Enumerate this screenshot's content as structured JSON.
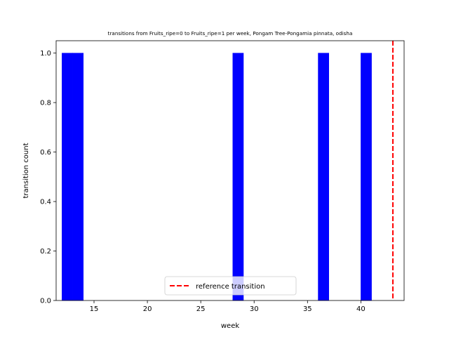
{
  "chart_data": {
    "type": "bar",
    "title": "transitions from Fruits_ripe=0 to Fruits_ripe=1 per week, Pongam Tree-Pongamia pinnata, odisha",
    "xlabel": "week",
    "ylabel": "transition count",
    "xlim": [
      11.45,
      44.05
    ],
    "ylim": [
      0,
      1.05
    ],
    "x_ticks": [
      15,
      20,
      25,
      30,
      35,
      40
    ],
    "y_ticks": [
      0.0,
      0.2,
      0.4,
      0.6,
      0.8,
      1.0
    ],
    "x_tick_labels": [
      "15",
      "20",
      "25",
      "30",
      "35",
      "40"
    ],
    "y_tick_labels": [
      "0.0",
      "0.2",
      "0.4",
      "0.6",
      "0.8",
      "1.0"
    ],
    "bar_color": "#0000ff",
    "bars": [
      {
        "x": 12,
        "value": 1
      },
      {
        "x": 13,
        "value": 1
      },
      {
        "x": 28,
        "value": 1
      },
      {
        "x": 36,
        "value": 1
      },
      {
        "x": 40,
        "value": 1
      }
    ],
    "reference_line": {
      "x": 43,
      "color": "#ff0000",
      "style": "dashed"
    },
    "legend": {
      "label": "reference transition",
      "position": "lower-center"
    },
    "grid": false
  }
}
